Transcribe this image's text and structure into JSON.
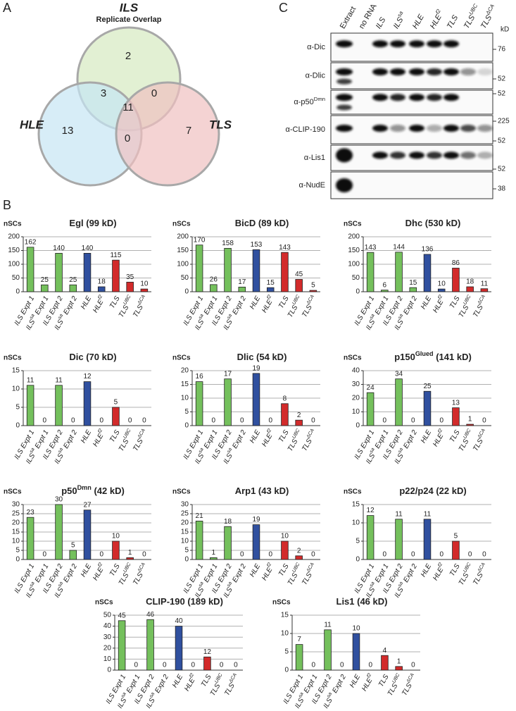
{
  "panel_labels": [
    "A",
    "B",
    "C"
  ],
  "chart_data": [
    {
      "type": "venn",
      "sets": [
        "ILS",
        "HLE",
        "TLS"
      ],
      "subtitle": "Replicate Overlap",
      "values": [
        2,
        3,
        0,
        11,
        13,
        0,
        7
      ],
      "colors": [
        "#d6e9c0",
        "#c6e5f3",
        "#f0c1c1"
      ]
    },
    {
      "type": "bar",
      "title": [
        "Egl (99 kD)"
      ],
      "ylabel": "nSCs",
      "categories": [
        [
          "ILS Expt 1"
        ],
        [
          "ILS",
          "sa",
          " Expt 1"
        ],
        [
          "ILS Expt 2"
        ],
        [
          "ILS",
          "sa",
          " Expt 2"
        ],
        [
          "HLE"
        ],
        [
          "HLE",
          "f2"
        ],
        [
          "TLS"
        ],
        [
          "TLS",
          "UBC"
        ],
        [
          "TLS",
          "ΔCA"
        ]
      ],
      "values": [
        162,
        25,
        140,
        25,
        140,
        18,
        115,
        35,
        10
      ],
      "colors": [
        "#74c05c",
        "#74c05c",
        "#74c05c",
        "#74c05c",
        "#30509f",
        "#30509f",
        "#d22b2b",
        "#d22b2b",
        "#d22b2b"
      ],
      "ylim": [
        0,
        200
      ],
      "yticks": [
        0,
        50,
        100,
        150,
        200
      ]
    },
    {
      "type": "bar",
      "title": [
        "BicD (89 kD)"
      ],
      "ylabel": "nSCs",
      "categories": [
        [
          "ILS Expt 1"
        ],
        [
          "ILS",
          "sa",
          " Expt 1"
        ],
        [
          "ILS Expt 2"
        ],
        [
          "ILS",
          "sa",
          " Expt 2"
        ],
        [
          "HLE"
        ],
        [
          "HLE",
          "f2"
        ],
        [
          "TLS"
        ],
        [
          "TLS",
          "UBC"
        ],
        [
          "TLS",
          "ΔCA"
        ]
      ],
      "values": [
        170,
        26,
        158,
        17,
        153,
        15,
        143,
        45,
        5
      ],
      "colors": [
        "#74c05c",
        "#74c05c",
        "#74c05c",
        "#74c05c",
        "#30509f",
        "#30509f",
        "#d22b2b",
        "#d22b2b",
        "#d22b2b"
      ],
      "ylim": [
        0,
        200
      ],
      "yticks": [
        0,
        50,
        100,
        150,
        200
      ]
    },
    {
      "type": "bar",
      "title": [
        "Dhc (530 kD)"
      ],
      "ylabel": "nSCs",
      "categories": [
        [
          "ILS Expt 1"
        ],
        [
          "ILS",
          "sa",
          " Expt 1"
        ],
        [
          "ILS Expt 2"
        ],
        [
          "ILS",
          "sa",
          " Expt 2"
        ],
        [
          "HLE"
        ],
        [
          "HLE",
          "f2"
        ],
        [
          "TLS"
        ],
        [
          "TLS",
          "UBC"
        ],
        [
          "TLS",
          "ΔCA"
        ]
      ],
      "values": [
        143,
        6,
        144,
        15,
        136,
        10,
        86,
        18,
        11
      ],
      "colors": [
        "#74c05c",
        "#74c05c",
        "#74c05c",
        "#74c05c",
        "#30509f",
        "#30509f",
        "#d22b2b",
        "#d22b2b",
        "#d22b2b"
      ],
      "ylim": [
        0,
        200
      ],
      "yticks": [
        0,
        50,
        100,
        150,
        200
      ]
    },
    {
      "type": "bar",
      "title": [
        "Dic (70 kD)"
      ],
      "ylabel": "nSCs",
      "categories": [
        [
          "ILS Expt 1"
        ],
        [
          "ILS",
          "sa",
          " Expt 1"
        ],
        [
          "ILS Expt 2"
        ],
        [
          "ILS",
          "sa",
          " Expt 2"
        ],
        [
          "HLE"
        ],
        [
          "HLE",
          "f2"
        ],
        [
          "TLS"
        ],
        [
          "TLS",
          "UBC"
        ],
        [
          "TLS",
          "ΔCA"
        ]
      ],
      "values": [
        11,
        0,
        11,
        0,
        12,
        0,
        5,
        0,
        0
      ],
      "colors": [
        "#74c05c",
        "#74c05c",
        "#74c05c",
        "#74c05c",
        "#30509f",
        "#30509f",
        "#d22b2b",
        "#d22b2b",
        "#d22b2b"
      ],
      "ylim": [
        0,
        15
      ],
      "yticks": [
        0,
        5,
        10,
        15
      ]
    },
    {
      "type": "bar",
      "title": [
        "Dlic (54 kD)"
      ],
      "ylabel": "nSCs",
      "categories": [
        [
          "ILS Expt 1"
        ],
        [
          "ILS",
          "sa",
          " Expt 1"
        ],
        [
          "ILS Expt 2"
        ],
        [
          "ILS",
          "sa",
          " Expt 2"
        ],
        [
          "HLE"
        ],
        [
          "HLE",
          "f2"
        ],
        [
          "TLS"
        ],
        [
          "TLS",
          "UBC"
        ],
        [
          "TLS",
          "ΔCA"
        ]
      ],
      "values": [
        16,
        0,
        17,
        0,
        19,
        0,
        8,
        2,
        0
      ],
      "colors": [
        "#74c05c",
        "#74c05c",
        "#74c05c",
        "#74c05c",
        "#30509f",
        "#30509f",
        "#d22b2b",
        "#d22b2b",
        "#d22b2b"
      ],
      "ylim": [
        0,
        20
      ],
      "yticks": [
        0,
        5,
        10,
        15,
        20
      ]
    },
    {
      "type": "bar",
      "title": [
        "p150",
        "Glued",
        " (141 kD)"
      ],
      "ylabel": "nSCs",
      "categories": [
        [
          "ILS Expt 1"
        ],
        [
          "ILS",
          "sa",
          " Expt 1"
        ],
        [
          "ILS Expt 2"
        ],
        [
          "ILS",
          "sa",
          " Expt 2"
        ],
        [
          "HLE"
        ],
        [
          "HLE",
          "f2"
        ],
        [
          "TLS"
        ],
        [
          "TLS",
          "UBC"
        ],
        [
          "TLS",
          "ΔCA"
        ]
      ],
      "values": [
        24,
        0,
        34,
        0,
        25,
        0,
        13,
        1,
        0
      ],
      "colors": [
        "#74c05c",
        "#74c05c",
        "#74c05c",
        "#74c05c",
        "#30509f",
        "#30509f",
        "#d22b2b",
        "#d22b2b",
        "#d22b2b"
      ],
      "ylim": [
        0,
        40
      ],
      "yticks": [
        0,
        10,
        20,
        30,
        40
      ]
    },
    {
      "type": "bar",
      "title": [
        "p50",
        "Dmn",
        " (42 kD)"
      ],
      "ylabel": "nSCs",
      "categories": [
        [
          "ILS Expt 1"
        ],
        [
          "ILS",
          "sa",
          " Expt 1"
        ],
        [
          "ILS Expt 2"
        ],
        [
          "ILS",
          "sa",
          " Expt 2"
        ],
        [
          "HLE"
        ],
        [
          "HLE",
          "f2"
        ],
        [
          "TLS"
        ],
        [
          "TLS",
          "UBC"
        ],
        [
          "TLS",
          "ΔCA"
        ]
      ],
      "values": [
        23,
        0,
        30,
        5,
        27,
        0,
        10,
        1,
        0
      ],
      "colors": [
        "#74c05c",
        "#74c05c",
        "#74c05c",
        "#74c05c",
        "#30509f",
        "#30509f",
        "#d22b2b",
        "#d22b2b",
        "#d22b2b"
      ],
      "ylim": [
        0,
        30
      ],
      "yticks": [
        0,
        5,
        10,
        15,
        20,
        25,
        30
      ]
    },
    {
      "type": "bar",
      "title": [
        "Arp1 (43 kD)"
      ],
      "ylabel": "nSCs",
      "categories": [
        [
          "ILS Expt 1"
        ],
        [
          "ILS",
          "sa",
          " Expt 1"
        ],
        [
          "ILS Expt 2"
        ],
        [
          "ILS",
          "sa",
          " Expt 2"
        ],
        [
          "HLE"
        ],
        [
          "HLE",
          "f2"
        ],
        [
          "TLS"
        ],
        [
          "TLS",
          "UBC"
        ],
        [
          "TLS",
          "ΔCA"
        ]
      ],
      "values": [
        21,
        1,
        18,
        0,
        19,
        0,
        10,
        2,
        0
      ],
      "colors": [
        "#74c05c",
        "#74c05c",
        "#74c05c",
        "#74c05c",
        "#30509f",
        "#30509f",
        "#d22b2b",
        "#d22b2b",
        "#d22b2b"
      ],
      "ylim": [
        0,
        30
      ],
      "yticks": [
        0,
        5,
        10,
        15,
        20,
        25,
        30
      ]
    },
    {
      "type": "bar",
      "title": [
        "p22/p24 (22 kD)"
      ],
      "ylabel": "nSCs",
      "categories": [
        [
          "ILS Expt 1"
        ],
        [
          "ILS",
          "sa",
          " Expt 1"
        ],
        [
          "ILS Expt 2"
        ],
        [
          "ILS",
          "sa",
          " Expt 2"
        ],
        [
          "HLE"
        ],
        [
          "HLE",
          "f2"
        ],
        [
          "TLS"
        ],
        [
          "TLS",
          "UBC"
        ],
        [
          "TLS",
          "ΔCA"
        ]
      ],
      "values": [
        12,
        0,
        11,
        0,
        11,
        0,
        5,
        0,
        0
      ],
      "colors": [
        "#74c05c",
        "#74c05c",
        "#74c05c",
        "#74c05c",
        "#30509f",
        "#30509f",
        "#d22b2b",
        "#d22b2b",
        "#d22b2b"
      ],
      "ylim": [
        0,
        15
      ],
      "yticks": [
        0,
        5,
        10,
        15
      ]
    },
    {
      "type": "bar",
      "title": [
        "CLIP-190 (189 kD)"
      ],
      "ylabel": "nSCs",
      "categories": [
        [
          "ILS Expt 1"
        ],
        [
          "ILS",
          "sa",
          " Expt 1"
        ],
        [
          "ILS Expt 2"
        ],
        [
          "ILS",
          "sa",
          " Expt 2"
        ],
        [
          "HLE"
        ],
        [
          "HLE",
          "f2"
        ],
        [
          "TLS"
        ],
        [
          "TLS",
          "UBC"
        ],
        [
          "TLS",
          "ΔCA"
        ]
      ],
      "values": [
        45,
        0,
        46,
        0,
        40,
        0,
        12,
        0,
        0
      ],
      "colors": [
        "#74c05c",
        "#74c05c",
        "#74c05c",
        "#74c05c",
        "#30509f",
        "#30509f",
        "#d22b2b",
        "#d22b2b",
        "#d22b2b"
      ],
      "ylim": [
        0,
        50
      ],
      "yticks": [
        0,
        10,
        20,
        30,
        40,
        50
      ]
    },
    {
      "type": "bar",
      "title": [
        "Lis1 (46 kD)"
      ],
      "ylabel": "nSCs",
      "categories": [
        [
          "ILS Expt 1"
        ],
        [
          "ILS",
          "sa",
          " Expt 1"
        ],
        [
          "ILS Expt 2"
        ],
        [
          "ILS",
          "sa",
          " Expt 2"
        ],
        [
          "HLE"
        ],
        [
          "HLE",
          "f2"
        ],
        [
          "TLS"
        ],
        [
          "TLS",
          "UBC"
        ],
        [
          "TLS",
          "ΔCA"
        ]
      ],
      "values": [
        7,
        0,
        11,
        0,
        10,
        0,
        4,
        1,
        0
      ],
      "colors": [
        "#74c05c",
        "#74c05c",
        "#74c05c",
        "#74c05c",
        "#30509f",
        "#30509f",
        "#d22b2b",
        "#d22b2b",
        "#d22b2b"
      ],
      "ylim": [
        0,
        15
      ],
      "yticks": [
        0,
        5,
        10,
        15
      ]
    }
  ],
  "blot": {
    "lanes": [
      [
        "Extract"
      ],
      [
        "no RNA"
      ],
      [
        "ILS"
      ],
      [
        "ILS",
        "sa"
      ],
      [
        "HLE"
      ],
      [
        "HLE",
        "f2"
      ],
      [
        "TLS"
      ],
      [
        "TLS",
        "UBC"
      ],
      [
        "TLS",
        "ΔCA"
      ]
    ],
    "unit": "kD",
    "rows": [
      [
        "α-Dic"
      ],
      [
        "α-Dlic"
      ],
      [
        "α-p50",
        "Dmn"
      ],
      [
        "α-CLIP-190"
      ],
      [
        "α-Lis1"
      ],
      [
        "α-NudE"
      ]
    ],
    "markers": [
      "76",
      "52",
      "52",
      "225",
      "52",
      "52",
      "38"
    ]
  }
}
